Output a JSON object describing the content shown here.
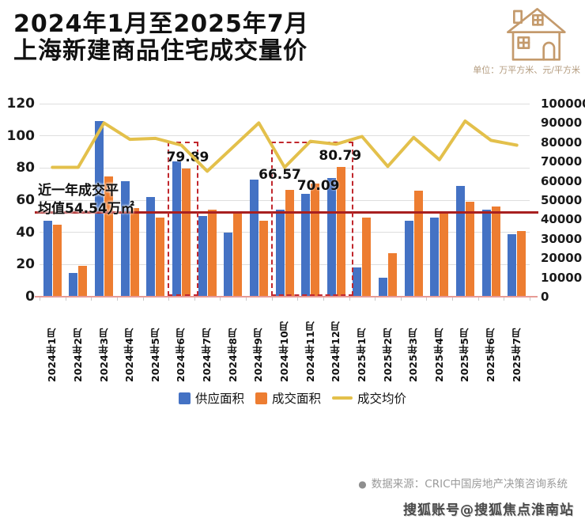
{
  "header": {
    "title_line1": "2024年1月至2025年7月",
    "title_line2": "上海新建商品住宅成交量价",
    "unit_note": "单位：万平方米、元/平方米"
  },
  "chart_data": {
    "type": "bar",
    "subtype": "grouped bars with secondary-axis line",
    "categories": [
      "2024年1月",
      "2024年2月",
      "2024年3月",
      "2024年4月",
      "2024年5月",
      "2024年6月",
      "2024年7月",
      "2024年8月",
      "2024年9月",
      "2024年10月",
      "2024年11月",
      "2024年12月",
      "2025年1月",
      "2025年2月",
      "2025年3月",
      "2025年4月",
      "2025年5月",
      "2025年6月",
      "2025年7月"
    ],
    "series": [
      {
        "name": "供应面积",
        "type": "bar",
        "axis": "left",
        "color": "#4472c4",
        "values": [
          47,
          15,
          109,
          72,
          62,
          84,
          50,
          40,
          73,
          54,
          64,
          74,
          18,
          12,
          47,
          49,
          69,
          54,
          39
        ]
      },
      {
        "name": "成交面积",
        "type": "bar",
        "axis": "left",
        "color": "#ed7d31",
        "values": [
          45,
          19,
          75,
          55,
          49,
          79.89,
          54,
          53,
          47,
          66.57,
          70.09,
          80.79,
          49,
          27,
          66,
          52,
          59,
          56,
          41
        ]
      },
      {
        "name": "成交均价",
        "type": "line",
        "axis": "right",
        "color": "#e3c04b",
        "values": [
          67000,
          67000,
          90000,
          81500,
          82000,
          78500,
          65000,
          77500,
          90000,
          67000,
          80500,
          79000,
          83000,
          67500,
          82500,
          71000,
          91000,
          81000,
          78500
        ]
      }
    ],
    "left_axis": {
      "min": 0,
      "max": 120,
      "step": 20,
      "ticks": [
        "120",
        "100",
        "80",
        "60",
        "40",
        "20",
        "0"
      ]
    },
    "right_axis": {
      "min": 0,
      "max": 100000,
      "step": 10000,
      "ticks": [
        "100000",
        "90000",
        "80000",
        "70000",
        "60000",
        "50000",
        "40000",
        "30000",
        "20000",
        "10000",
        "0"
      ]
    },
    "grid": "horizontal, left-axis ticks",
    "average_line": {
      "value": 54.54,
      "color": "#a82020",
      "label_line1": "近一年成交平",
      "label_line2": "均值54.54万㎡"
    },
    "data_labels": [
      {
        "series": "成交面积",
        "index": 5,
        "text": "79.89"
      },
      {
        "series": "成交面积",
        "index": 9,
        "text": "66.57"
      },
      {
        "series": "成交面积",
        "index": 10,
        "text": "70.09"
      },
      {
        "series": "成交面积",
        "index": 11,
        "text": "80.79"
      }
    ],
    "highlight_boxes": [
      {
        "from_index": 5,
        "to_index": 5,
        "color": "#c1272d"
      },
      {
        "from_index": 9,
        "to_index": 11,
        "color": "#c1272d"
      }
    ],
    "legend_position": "bottom"
  },
  "legend": {
    "items": [
      {
        "label": "供应面积",
        "marker": "square",
        "color": "#4472c4"
      },
      {
        "label": "成交面积",
        "marker": "square",
        "color": "#ed7d31"
      },
      {
        "label": "成交均价",
        "marker": "line",
        "color": "#e3c04b"
      }
    ]
  },
  "footer": {
    "bullet": "●",
    "source": "数据来源：CRIC中国房地产决策咨询系统",
    "watermark": "搜狐账号@搜狐焦点淮南站"
  },
  "colors": {
    "bar_supply": "#4472c4",
    "bar_deal": "#ed7d31",
    "price_line": "#e3c04b",
    "average_line": "#a82020",
    "highlight_box": "#c1272d",
    "icon": "#c49a6c"
  }
}
